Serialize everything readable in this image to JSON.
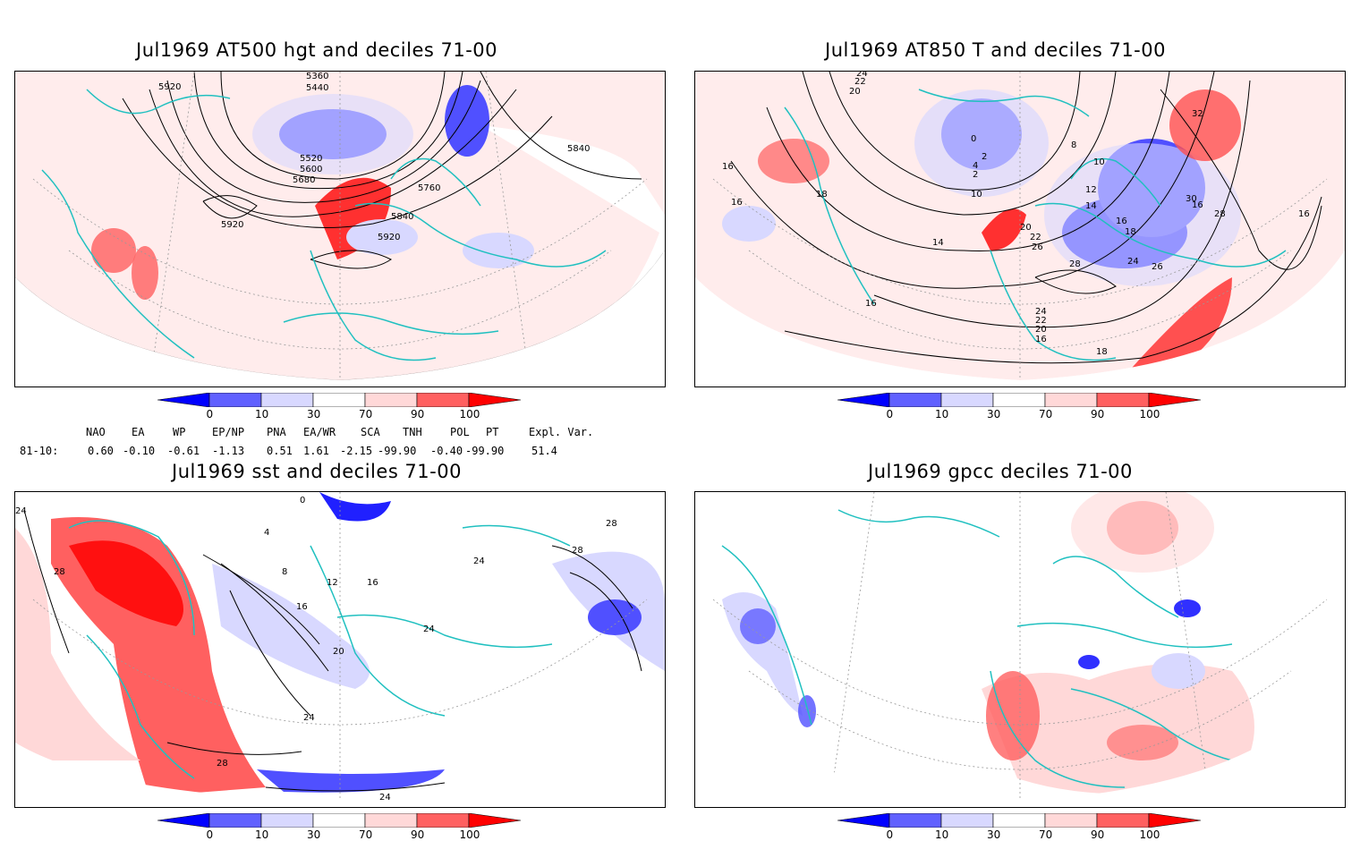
{
  "panels": [
    {
      "title": "Jul1969 AT500 hgt and deciles 71-00",
      "contour_labels": [
        "5360",
        "5440",
        "5920",
        "5520",
        "5600",
        "5680",
        "5760",
        "5840",
        "5840",
        "5920",
        "5920"
      ]
    },
    {
      "title": "Jul1969 AT850 T and deciles 71-00",
      "contour_labels": [
        "24",
        "22",
        "20",
        "0",
        "2",
        "10",
        "8",
        "4",
        "2",
        "10",
        "16",
        "18",
        "16",
        "14",
        "12",
        "14",
        "16",
        "18",
        "20",
        "22",
        "26",
        "28",
        "24",
        "26",
        "28",
        "30",
        "32",
        "16",
        "16",
        "16",
        "24",
        "22",
        "20",
        "18",
        "16"
      ]
    },
    {
      "title": "Jul1969 sst and deciles 71-00",
      "contour_labels": [
        "24",
        "28",
        "0",
        "4",
        "8",
        "12",
        "16",
        "16",
        "20",
        "24",
        "24",
        "24",
        "28",
        "28",
        "24",
        "28"
      ]
    },
    {
      "title": "Jul1969 gpcc deciles 71-00",
      "contour_labels": []
    }
  ],
  "colorbar": {
    "ticks": [
      "0",
      "10",
      "30",
      "70",
      "90",
      "100"
    ],
    "colors": [
      "#0000ff",
      "#6060ff",
      "#d8d8ff",
      "#ffffff",
      "#ffd8d8",
      "#ff6060",
      "#ff0000"
    ]
  },
  "indices": {
    "headers": [
      "NAO",
      "EA",
      "WP",
      "EP/NP",
      "PNA",
      "EA/WR",
      "SCA",
      "TNH",
      "POL",
      "PT",
      "Expl. Var."
    ],
    "row_label": "81-10:",
    "values": [
      "0.60",
      "-0.10",
      "-0.61",
      "-1.13",
      "0.51",
      "1.61",
      "-2.15",
      "-99.90",
      "-0.40",
      "-99.90",
      "51.4"
    ]
  },
  "colors": {
    "coast": "#20c0c0",
    "contour": "#000000",
    "grid": "#999999"
  }
}
